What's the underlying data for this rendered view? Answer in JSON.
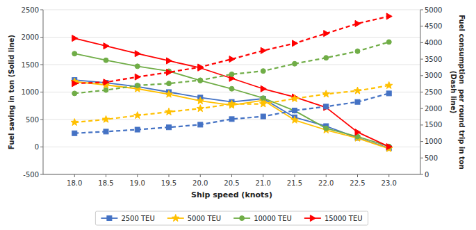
{
  "chart_data": {
    "type": "line",
    "xlabel": "Ship speed (knots)",
    "ylabel": "Fuel saving in ton (Solid line)",
    "y2label": "Fuel consumption  per round trip in ton\n(Dash line)",
    "x": [
      18,
      18.5,
      19,
      19.5,
      20,
      20.5,
      21,
      21.5,
      22,
      22.5,
      23
    ],
    "xlim": [
      17.5,
      23.5
    ],
    "xticks": [
      {
        "value": 18,
        "label": "18.0"
      },
      {
        "value": 18.5,
        "label": "18.5"
      },
      {
        "value": 19,
        "label": "19.0"
      },
      {
        "value": 19.5,
        "label": "19.5"
      },
      {
        "value": 20,
        "label": "20.0"
      },
      {
        "value": 20.5,
        "label": "20.5"
      },
      {
        "value": 21,
        "label": "21.0"
      },
      {
        "value": 21.5,
        "label": "21.5"
      },
      {
        "value": 22,
        "label": "22.0"
      },
      {
        "value": 22.5,
        "label": "22.5"
      },
      {
        "value": 23,
        "label": "23.0"
      }
    ],
    "ylim": [
      -500,
      2500
    ],
    "yticks": [
      -500,
      0,
      500,
      1000,
      1500,
      2000,
      2500
    ],
    "y2lim": [
      0,
      5000
    ],
    "y2ticks": [
      0,
      500,
      1000,
      1500,
      2000,
      2500,
      3000,
      3500,
      4000,
      4500,
      5000
    ],
    "grid": true,
    "legend": "bottom",
    "series": [
      {
        "name": "2500 TEU",
        "color": "#4472C4",
        "marker": "square",
        "line_style": "solid",
        "values": [
          1220,
          1170,
          1100,
          1000,
          900,
          820,
          880,
          540,
          380,
          165,
          -20
        ]
      },
      {
        "name": "5000 TEU",
        "color": "#FFC000",
        "marker": "star",
        "line_style": "solid",
        "values": [
          1190,
          1130,
          1060,
          960,
          840,
          760,
          850,
          490,
          310,
          160,
          -30
        ]
      },
      {
        "name": "10000 TEU",
        "color": "#70AD47",
        "marker": "circle",
        "line_style": "solid",
        "values": [
          1700,
          1580,
          1470,
          1380,
          1210,
          1060,
          890,
          660,
          340,
          190,
          10
        ]
      },
      {
        "name": "15000 TEU",
        "color": "#FF0000",
        "marker": "triangle-right",
        "line_style": "solid",
        "values": [
          1980,
          1840,
          1700,
          1570,
          1440,
          1250,
          1060,
          910,
          720,
          270,
          5
        ]
      },
      {
        "axis": "y2",
        "color": "#4472C4",
        "marker": "square",
        "line_style": "dashed",
        "values": [
          1250,
          1300,
          1360,
          1430,
          1510,
          1680,
          1760,
          1940,
          2060,
          2200,
          2460
        ]
      },
      {
        "axis": "y2",
        "color": "#FFC000",
        "marker": "star",
        "line_style": "dashed",
        "values": [
          1580,
          1670,
          1790,
          1900,
          2000,
          2140,
          2140,
          2300,
          2440,
          2540,
          2700
        ]
      },
      {
        "axis": "y2",
        "color": "#70AD47",
        "marker": "circle",
        "line_style": "dashed",
        "values": [
          2460,
          2560,
          2700,
          2760,
          2860,
          3040,
          3140,
          3360,
          3540,
          3740,
          4020
        ]
      },
      {
        "axis": "y2",
        "color": "#FF0000",
        "marker": "triangle-right",
        "line_style": "dashed",
        "values": [
          2760,
          2800,
          2960,
          3100,
          3260,
          3500,
          3760,
          3980,
          4280,
          4580,
          4800
        ]
      }
    ]
  }
}
